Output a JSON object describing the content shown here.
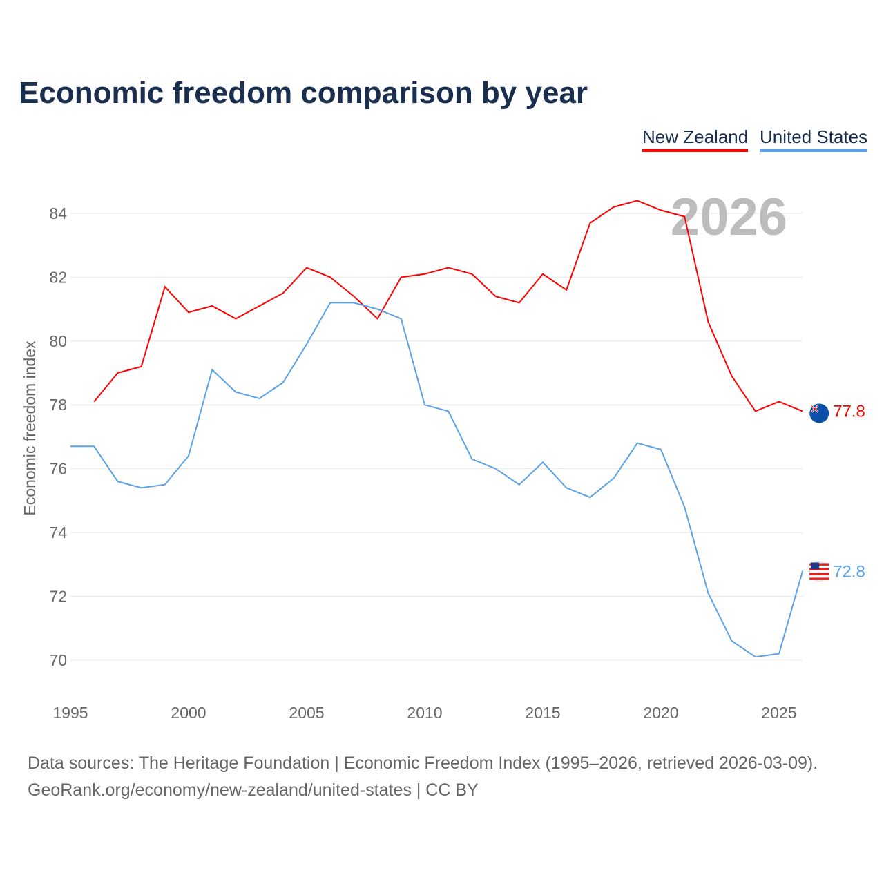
{
  "chart_data": {
    "type": "line",
    "title": "Economic freedom comparison by year",
    "xlabel": "",
    "ylabel": "Economic freedom index",
    "xlim": [
      1995,
      2026
    ],
    "ylim": [
      69,
      85
    ],
    "x_ticks": [
      "1995",
      "2000",
      "2005",
      "2010",
      "2015",
      "2020",
      "2025"
    ],
    "y_ticks": [
      "70",
      "72",
      "74",
      "76",
      "78",
      "80",
      "82",
      "84"
    ],
    "grid": true,
    "legend_position": "top-right",
    "year_label": "2026",
    "series": [
      {
        "name": "New Zealand",
        "color": "#ff0000",
        "end_label": "77.8",
        "x": [
          1996,
          1997,
          1998,
          1999,
          2000,
          2001,
          2002,
          2003,
          2004,
          2005,
          2006,
          2007,
          2008,
          2009,
          2010,
          2011,
          2012,
          2013,
          2014,
          2015,
          2016,
          2017,
          2018,
          2019,
          2020,
          2021,
          2022,
          2023,
          2024,
          2025,
          2026
        ],
        "values": [
          78.1,
          79.0,
          79.2,
          81.7,
          80.9,
          81.1,
          80.7,
          81.1,
          81.5,
          82.3,
          82.0,
          81.4,
          80.7,
          82.0,
          82.1,
          82.3,
          82.1,
          81.4,
          81.2,
          82.1,
          81.6,
          83.7,
          84.2,
          84.4,
          84.1,
          83.9,
          80.6,
          78.9,
          77.8,
          78.1,
          77.8
        ]
      },
      {
        "name": "United States",
        "color": "#5aa2e8",
        "end_label": "72.8",
        "x": [
          1995,
          1996,
          1997,
          1998,
          1999,
          2000,
          2001,
          2002,
          2003,
          2004,
          2005,
          2006,
          2007,
          2008,
          2009,
          2010,
          2011,
          2012,
          2013,
          2014,
          2015,
          2016,
          2017,
          2018,
          2019,
          2020,
          2021,
          2022,
          2023,
          2024,
          2025,
          2026
        ],
        "values": [
          76.7,
          76.7,
          75.6,
          75.4,
          75.5,
          76.4,
          79.1,
          78.4,
          78.2,
          78.7,
          79.9,
          81.2,
          81.2,
          81.0,
          80.7,
          78.0,
          77.8,
          76.3,
          76.0,
          75.5,
          76.2,
          75.4,
          75.1,
          75.7,
          76.8,
          76.6,
          74.8,
          72.1,
          70.6,
          70.1,
          70.2,
          72.8
        ]
      }
    ]
  },
  "footer": {
    "line1": "Data sources: The Heritage Foundation | Economic Freedom Index (1995–2026, retrieved 2026-03-09).",
    "line2": "GeoRank.org/economy/new-zealand/united-states | CC BY"
  }
}
